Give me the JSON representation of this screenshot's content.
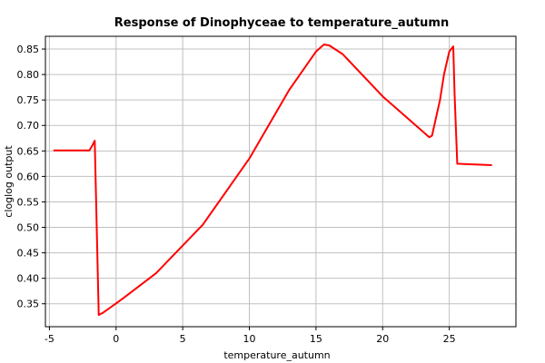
{
  "chart_data": {
    "type": "line",
    "title": "Response of Dinophyceae to temperature_autumn",
    "xlabel": "temperature_autumn",
    "ylabel": "cloglog output",
    "xlim": [
      -5.3,
      30.0
    ],
    "ylim": [
      0.305,
      0.875
    ],
    "xticks": [
      -5,
      0,
      5,
      10,
      15,
      20,
      25
    ],
    "yticks": [
      0.35,
      0.4,
      0.45,
      0.5,
      0.55,
      0.6,
      0.65,
      0.7,
      0.75,
      0.8,
      0.85
    ],
    "grid": true,
    "line_color": "#ff0000",
    "series": [
      {
        "x": [
          -4.7,
          -2.0,
          -1.8,
          -1.6,
          -1.3,
          -1.0,
          0.5,
          3.0,
          6.5,
          10.0,
          13.0,
          15.0,
          15.6,
          16.0,
          17.0,
          20.0,
          23.5,
          23.7,
          24.3,
          24.6,
          25.0,
          25.3,
          25.4,
          25.6,
          28.2
        ],
        "y": [
          0.651,
          0.651,
          0.66,
          0.67,
          0.328,
          0.332,
          0.36,
          0.41,
          0.505,
          0.635,
          0.77,
          0.845,
          0.859,
          0.857,
          0.84,
          0.757,
          0.677,
          0.68,
          0.75,
          0.8,
          0.845,
          0.855,
          0.76,
          0.625,
          0.622
        ]
      }
    ]
  }
}
